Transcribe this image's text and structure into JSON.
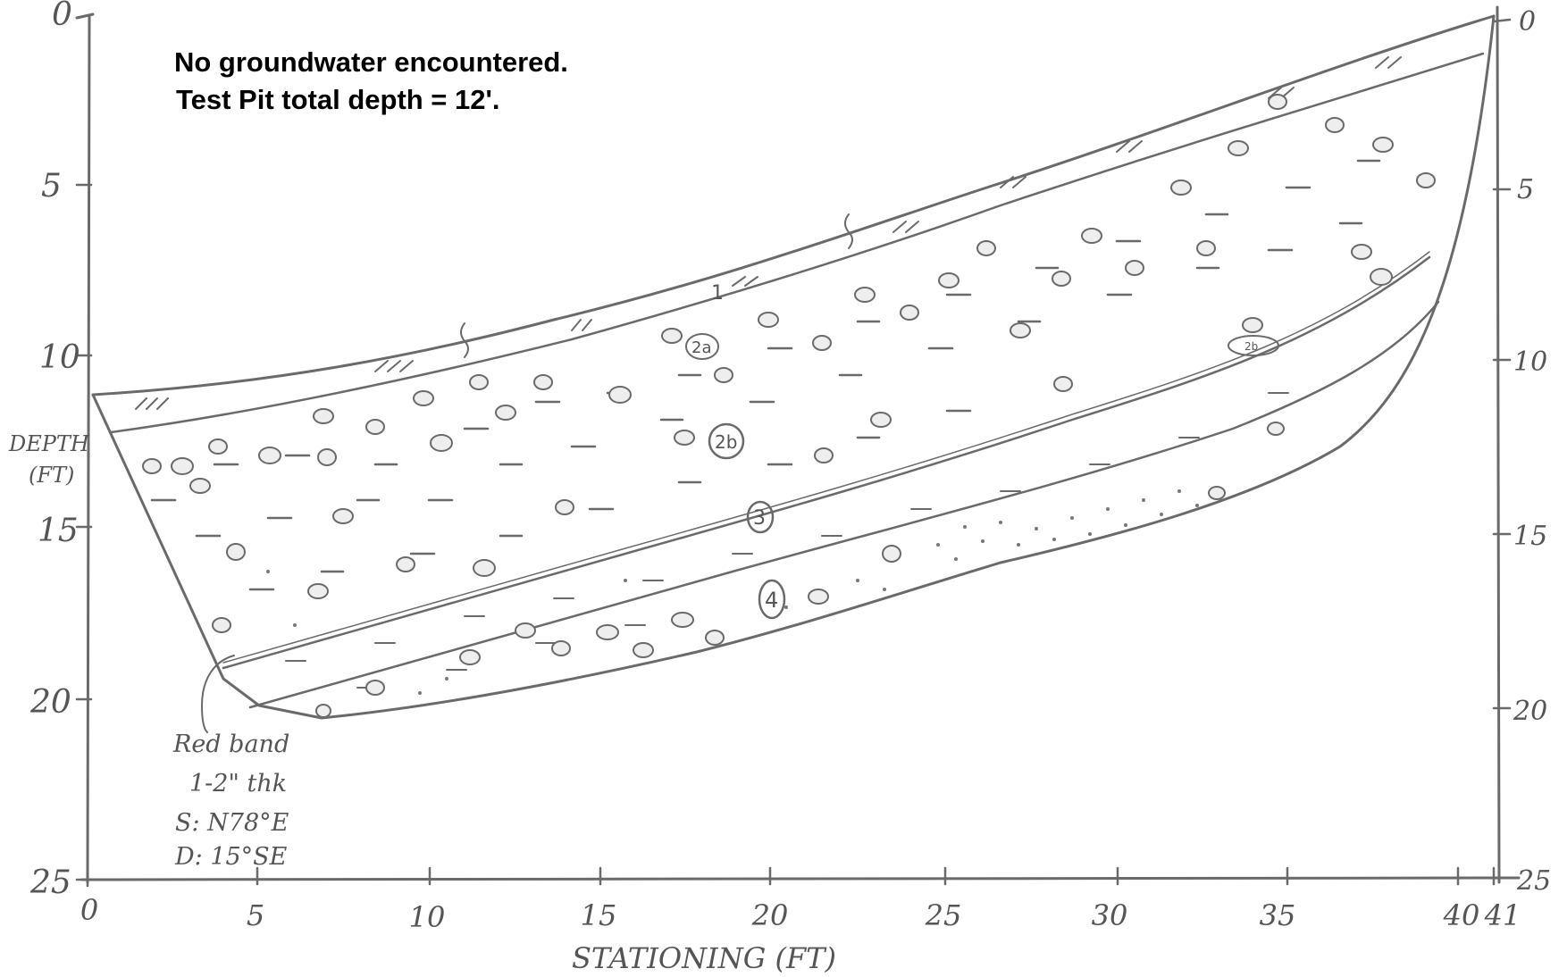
{
  "notes": {
    "groundwater": "No groundwater encountered.",
    "total_depth": "Test Pit total depth = 12'."
  },
  "axes": {
    "depth_label_line1": "DEPTH",
    "depth_label_line2": "(FT)",
    "stationing_label": "STATIONING (FT)",
    "depth_ticks": [
      "0",
      "5",
      "10",
      "15",
      "20",
      "25"
    ],
    "right_depth_ticks": [
      "0",
      "5",
      "10",
      "15",
      "20",
      "25"
    ],
    "station_ticks": [
      "0",
      "5",
      "10",
      "15",
      "20",
      "25",
      "30",
      "35",
      "40",
      "41"
    ]
  },
  "units": {
    "u1": "1",
    "u2a": "2a",
    "u2b": "2b",
    "u3": "3",
    "u4": "4",
    "u2b_small": "2b"
  },
  "red_band_note": {
    "line1": "Red band",
    "line2": "1-2\" thk",
    "line3": "S: N78°E",
    "line4": "D: 15°SE"
  }
}
